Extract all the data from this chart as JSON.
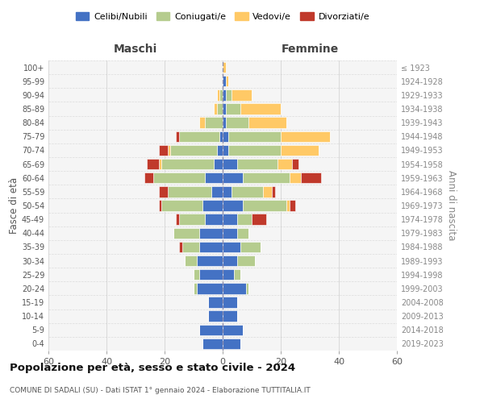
{
  "age_groups": [
    "0-4",
    "5-9",
    "10-14",
    "15-19",
    "20-24",
    "25-29",
    "30-34",
    "35-39",
    "40-44",
    "45-49",
    "50-54",
    "55-59",
    "60-64",
    "65-69",
    "70-74",
    "75-79",
    "80-84",
    "85-89",
    "90-94",
    "95-99",
    "100+"
  ],
  "birth_years": [
    "2019-2023",
    "2014-2018",
    "2009-2013",
    "2004-2008",
    "1999-2003",
    "1994-1998",
    "1989-1993",
    "1984-1988",
    "1979-1983",
    "1974-1978",
    "1969-1973",
    "1964-1968",
    "1959-1963",
    "1954-1958",
    "1949-1953",
    "1944-1948",
    "1939-1943",
    "1934-1938",
    "1929-1933",
    "1924-1928",
    "≤ 1923"
  ],
  "colors": {
    "celibi": "#4472c4",
    "coniugati": "#b5cc8e",
    "vedovi": "#ffc966",
    "divorziati": "#c0392b"
  },
  "maschi": {
    "celibi": [
      7,
      8,
      5,
      5,
      9,
      8,
      9,
      8,
      8,
      6,
      7,
      4,
      6,
      3,
      2,
      1,
      0,
      0,
      0,
      0,
      0
    ],
    "coniugati": [
      0,
      0,
      0,
      0,
      1,
      2,
      4,
      6,
      9,
      9,
      14,
      15,
      18,
      18,
      16,
      14,
      6,
      2,
      1,
      0,
      0
    ],
    "vedovi": [
      0,
      0,
      0,
      0,
      0,
      0,
      0,
      0,
      0,
      0,
      0,
      0,
      0,
      1,
      1,
      0,
      2,
      1,
      1,
      0,
      0
    ],
    "divorziati": [
      0,
      0,
      0,
      0,
      0,
      0,
      0,
      1,
      0,
      1,
      1,
      3,
      3,
      4,
      3,
      1,
      0,
      0,
      0,
      0,
      0
    ]
  },
  "femmine": {
    "celibi": [
      6,
      7,
      5,
      5,
      8,
      4,
      5,
      6,
      5,
      5,
      7,
      3,
      7,
      5,
      2,
      2,
      1,
      1,
      1,
      1,
      0
    ],
    "coniugati": [
      0,
      0,
      0,
      0,
      1,
      2,
      6,
      7,
      4,
      5,
      15,
      11,
      16,
      14,
      18,
      18,
      8,
      5,
      2,
      0,
      0
    ],
    "vedovi": [
      0,
      0,
      0,
      0,
      0,
      0,
      0,
      0,
      0,
      0,
      1,
      3,
      4,
      5,
      13,
      17,
      13,
      14,
      7,
      1,
      1
    ],
    "divorziati": [
      0,
      0,
      0,
      0,
      0,
      0,
      0,
      0,
      0,
      5,
      2,
      1,
      7,
      2,
      0,
      0,
      0,
      0,
      0,
      0,
      0
    ]
  },
  "xlim": 60,
  "title_main": "Popolazione per età, sesso e stato civile - 2024",
  "title_sub": "COMUNE DI SADALI (SU) - Dati ISTAT 1° gennaio 2024 - Elaborazione TUTTITALIA.IT",
  "ylabel_left": "Fasce di età",
  "ylabel_right": "Anni di nascita",
  "header_left": "Maschi",
  "header_right": "Femmine",
  "legend_labels": [
    "Celibi/Nubili",
    "Coniugati/e",
    "Vedovi/e",
    "Divorziati/e"
  ],
  "bg_color": "#ffffff",
  "plot_bg": "#f5f5f5"
}
